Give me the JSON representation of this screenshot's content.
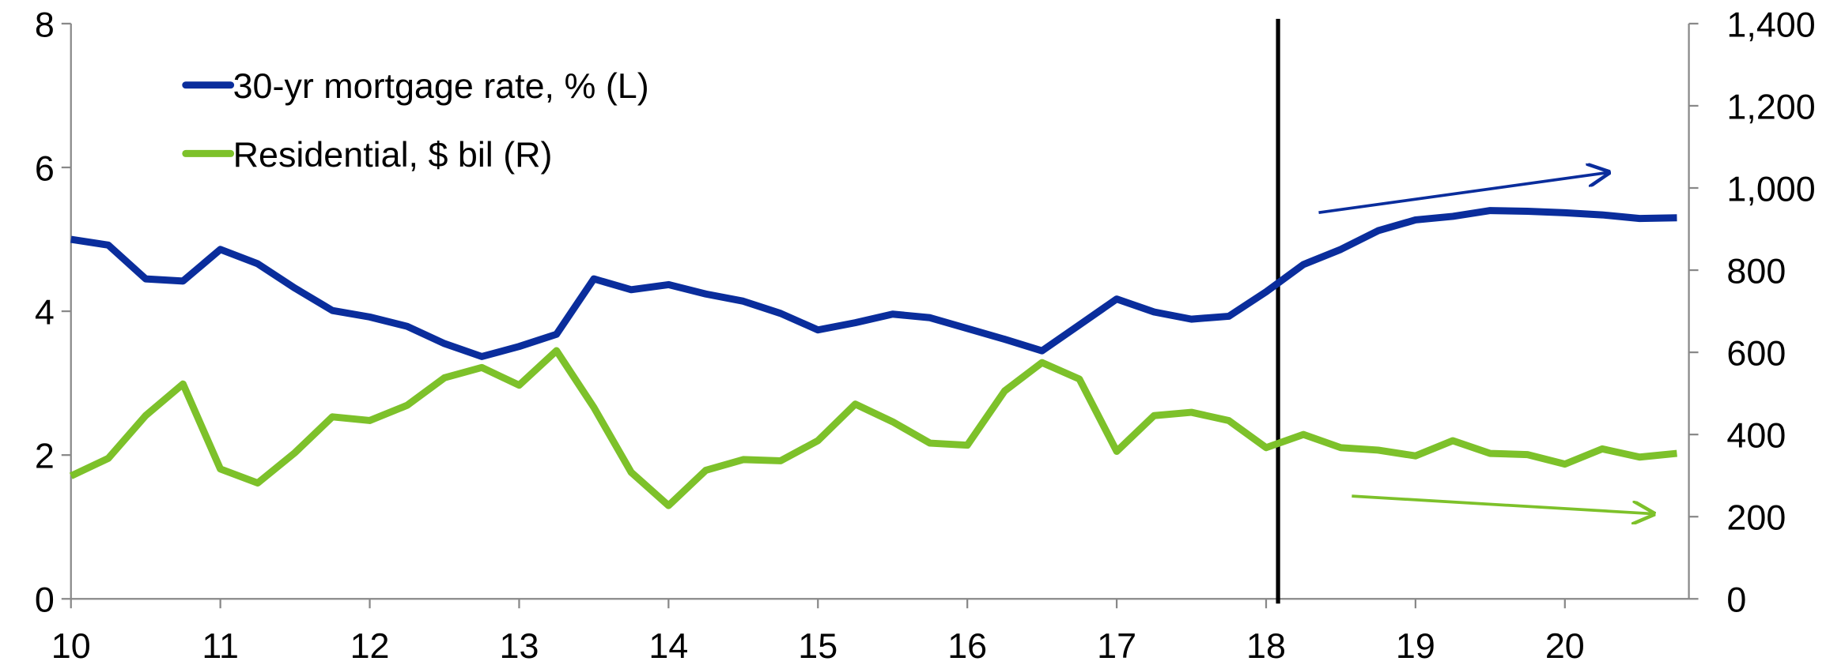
{
  "chart_data": {
    "type": "line",
    "x": [
      10,
      10.25,
      10.5,
      10.75,
      11,
      11.25,
      11.5,
      11.75,
      12,
      12.25,
      12.5,
      12.75,
      13,
      13.25,
      13.5,
      13.75,
      14,
      14.25,
      14.5,
      14.75,
      15,
      15.25,
      15.5,
      15.75,
      16,
      16.25,
      16.5,
      16.75,
      17,
      17.25,
      17.5,
      17.75,
      18,
      18.25,
      18.5,
      18.75,
      19,
      19.25,
      19.5,
      19.75,
      20,
      20.25,
      20.5,
      20.75
    ],
    "series": [
      {
        "name": "30-yr mortgage rate, % (L)",
        "color": "#0a2d9c",
        "axis": "y",
        "values": [
          5.0,
          4.92,
          4.45,
          4.42,
          4.86,
          4.66,
          4.32,
          4.01,
          3.92,
          3.79,
          3.55,
          3.37,
          3.51,
          3.68,
          4.45,
          4.3,
          4.37,
          4.24,
          4.14,
          3.97,
          3.74,
          3.84,
          3.96,
          3.91,
          3.76,
          3.61,
          3.45,
          3.81,
          4.17,
          3.99,
          3.89,
          3.93,
          4.27,
          4.65,
          4.86,
          5.12,
          5.27,
          5.32,
          5.4,
          5.39,
          5.37,
          5.34,
          5.29,
          5.3
        ]
      },
      {
        "name": "Residential, $ bil (R)",
        "color": "#7dc12a",
        "axis": "y2",
        "values": [
          299,
          342,
          446,
          523,
          316,
          282,
          356,
          443,
          434,
          471,
          538,
          563,
          520,
          604,
          466,
          308,
          227,
          313,
          339,
          336,
          385,
          474,
          431,
          379,
          374,
          506,
          575,
          535,
          359,
          446,
          454,
          434,
          368,
          400,
          368,
          362,
          348,
          385,
          354,
          351,
          328,
          365,
          345,
          354
        ]
      }
    ],
    "xlim": [
      10,
      20.83
    ],
    "xticks": [
      10,
      11,
      12,
      13,
      14,
      15,
      16,
      17,
      18,
      19,
      20
    ],
    "ylim": [
      0,
      8
    ],
    "yticks": [
      0,
      2,
      4,
      6,
      8
    ],
    "y2lim": [
      0,
      1400
    ],
    "y2ticks": [
      0,
      200,
      400,
      600,
      800,
      {
        "value": 1000,
        "label": "1,000"
      },
      {
        "value": 1200,
        "label": "1,200"
      },
      {
        "value": 1400,
        "label": "1,400"
      }
    ],
    "vertical_line": 18.08,
    "legend": "upper left"
  }
}
